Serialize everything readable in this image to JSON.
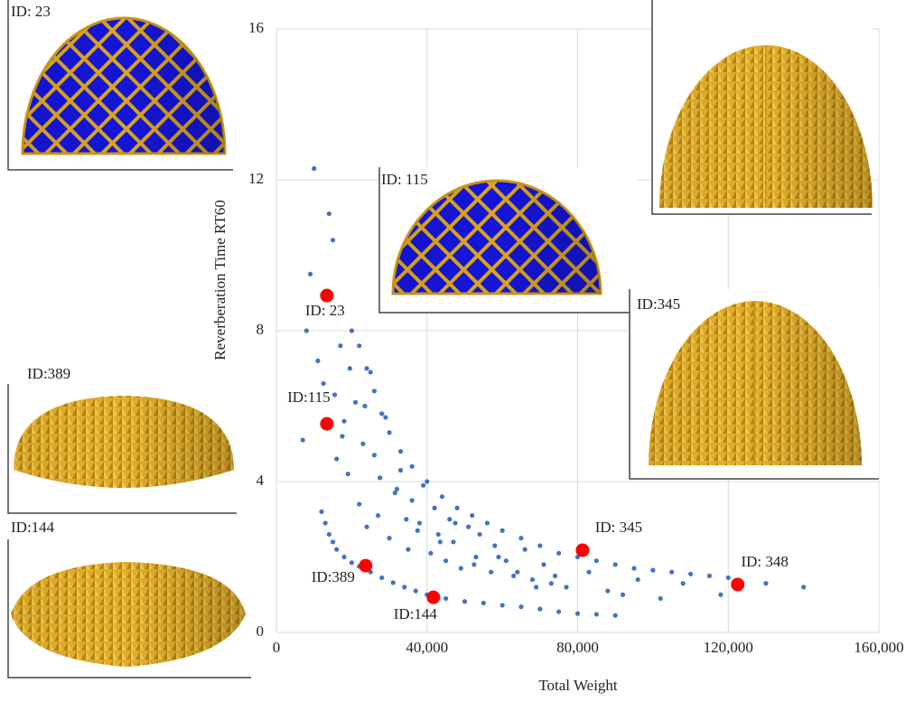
{
  "chart_data": {
    "type": "scatter",
    "xlabel": "Total Weight",
    "ylabel": "Reverberation Time RT60",
    "xlim": [
      0,
      160000
    ],
    "ylim": [
      0,
      16
    ],
    "xticks": [
      0,
      {
        "value": 40000,
        "label": "40,000"
      },
      {
        "value": 80000,
        "label": "80,000"
      },
      {
        "value": 120000,
        "label": "120,000"
      },
      {
        "value": 160000,
        "label": "160,000"
      }
    ],
    "yticks": [
      0,
      4,
      8,
      12,
      16
    ],
    "grid": true,
    "color": "#4472c4",
    "x": [
      12000,
      13000,
      14000,
      15000,
      16000,
      18000,
      20000,
      22000,
      25000,
      28000,
      31000,
      34000,
      37000,
      40000,
      45000,
      50000,
      55000,
      60000,
      65000,
      70000,
      75000,
      80000,
      85000,
      90000,
      20000,
      22000,
      24000,
      26000,
      28000,
      30000,
      33000,
      36000,
      40000,
      44000,
      48000,
      52000,
      56000,
      60000,
      65000,
      70000,
      75000,
      80000,
      85000,
      90000,
      95000,
      100000,
      105000,
      110000,
      115000,
      120000,
      130000,
      140000,
      10000,
      14000,
      15000,
      9000,
      8000,
      7000,
      11000,
      12500,
      16000,
      17000,
      18000,
      19000,
      21000,
      22000,
      23000,
      24000,
      25000,
      26000,
      27000,
      29000,
      30000,
      32000,
      33000,
      35000,
      36000,
      38000,
      39000,
      41000,
      42000,
      43000,
      45000,
      46000,
      47000,
      49000,
      51000,
      53000,
      54000,
      57000,
      58000,
      61000,
      63000,
      66000,
      68000,
      71000,
      73000,
      77000,
      83000,
      88000,
      92000,
      96000,
      102000,
      108000,
      118000,
      15500,
      17500,
      19500,
      23500,
      27500,
      31500,
      34500,
      37500,
      43500,
      47500,
      52500,
      59000,
      64000,
      69000,
      74000
    ],
    "y": [
      3.2,
      2.9,
      2.6,
      2.4,
      2.2,
      2.0,
      1.85,
      1.75,
      1.6,
      1.45,
      1.32,
      1.2,
      1.1,
      1.0,
      0.9,
      0.82,
      0.78,
      0.72,
      0.68,
      0.62,
      0.55,
      0.5,
      0.48,
      0.45,
      8.0,
      7.6,
      7.0,
      6.4,
      5.8,
      5.3,
      4.8,
      4.4,
      4.0,
      3.6,
      3.3,
      3.1,
      2.9,
      2.7,
      2.5,
      2.3,
      2.1,
      2.0,
      1.9,
      1.8,
      1.7,
      1.65,
      1.6,
      1.55,
      1.5,
      1.45,
      1.3,
      1.2,
      12.3,
      11.1,
      10.4,
      9.5,
      8.0,
      5.1,
      7.2,
      6.6,
      4.6,
      7.6,
      5.6,
      4.2,
      6.1,
      3.4,
      5.0,
      2.8,
      6.9,
      4.7,
      3.1,
      5.7,
      2.5,
      3.8,
      4.3,
      2.2,
      3.5,
      2.9,
      3.9,
      2.1,
      3.3,
      2.6,
      1.9,
      3.0,
      2.4,
      1.7,
      2.8,
      2.0,
      2.6,
      1.6,
      2.3,
      1.9,
      1.5,
      2.2,
      1.4,
      1.8,
      1.3,
      1.2,
      1.6,
      1.1,
      1.0,
      1.4,
      0.9,
      1.3,
      1.0,
      6.3,
      5.2,
      7.0,
      6.0,
      4.1,
      3.7,
      3.0,
      2.7,
      2.4,
      2.9,
      1.8,
      2.0,
      1.6,
      1.2,
      1.5
    ],
    "highlights": {
      "color": "#ff0000",
      "x": [
        13400,
        13400,
        23700,
        41700,
        81300,
        122500
      ],
      "y": [
        8.93,
        5.53,
        1.77,
        0.93,
        2.18,
        1.27
      ],
      "labels": [
        "ID: 23",
        "ID:115",
        "ID:389",
        "ID:144",
        "ID: 345",
        "ID: 348"
      ]
    }
  },
  "insets": [
    {
      "label": "ID: 23"
    },
    {
      "label": "ID: 115"
    },
    {
      "label": "ID:345"
    },
    {
      "label": "ID:389"
    },
    {
      "label": "ID:144"
    }
  ]
}
